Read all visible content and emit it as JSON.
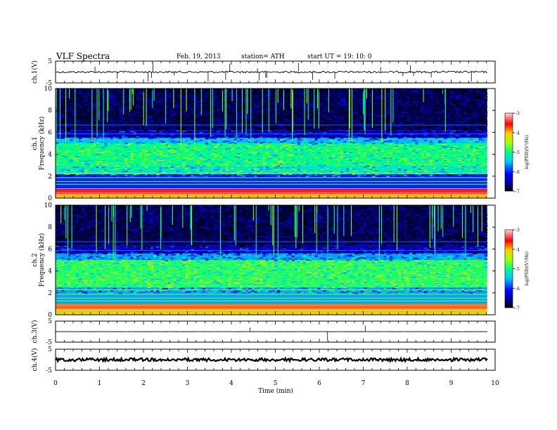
{
  "header": {
    "title": "VLF  Spectra",
    "date": "Feb. 19, 2013",
    "station": "station= ATH",
    "start": "start  UT  =    19: 10: 0"
  },
  "chart_data": {
    "type": "heatmap",
    "title": "VLF  Spectra",
    "xlabel": "Time  (min)",
    "xlim": [
      0,
      10
    ],
    "x_ticks": [
      "0",
      "1",
      "2",
      "3",
      "4",
      "5",
      "6",
      "7",
      "8",
      "9",
      "10"
    ],
    "panels": [
      {
        "kind": "waveform",
        "ylabel": "ch.1(V)",
        "ylim": [
          -5,
          5
        ],
        "y_ticks": [
          "5",
          "-5"
        ],
        "baseline": 0
      },
      {
        "kind": "spectrogram",
        "ylabel": "ch.1\nFrequency  (kHz)",
        "ylabel_lines": [
          "ch.1",
          "Frequency  (kHz)"
        ],
        "ylim": [
          0,
          10
        ],
        "y_ticks": [
          "0",
          "2",
          "4",
          "6",
          "8",
          "10"
        ],
        "bands": [
          {
            "from": 0.0,
            "to": 0.4,
            "level": -4.0
          },
          {
            "from": 0.4,
            "to": 0.8,
            "level": -3.5
          },
          {
            "from": 0.8,
            "to": 2.2,
            "level": -6.0
          },
          {
            "from": 2.2,
            "to": 3.0,
            "level": -5.2
          },
          {
            "from": 3.0,
            "to": 5.0,
            "level": -5.0
          },
          {
            "from": 5.0,
            "to": 5.5,
            "level": -5.5
          },
          {
            "from": 5.5,
            "to": 6.2,
            "level": -6.4
          },
          {
            "from": 6.2,
            "to": 10.0,
            "level": -6.8
          }
        ],
        "colorbar": {
          "label": "log(PSD)(V²/Hz)",
          "range": [
            -7,
            -3
          ],
          "ticks": [
            "-3",
            "-4",
            "-5",
            "-6",
            "-7"
          ]
        }
      },
      {
        "kind": "spectrogram",
        "ylabel": "ch.2\nFrequency  (kHz)",
        "ylabel_lines": [
          "ch.2",
          "Frequency  (kHz)"
        ],
        "ylim": [
          0,
          10
        ],
        "y_ticks": [
          "0",
          "2",
          "4",
          "6",
          "8",
          "10"
        ],
        "bands": [
          {
            "from": 0.0,
            "to": 0.5,
            "level": -4.2
          },
          {
            "from": 0.5,
            "to": 1.0,
            "level": -3.8
          },
          {
            "from": 1.0,
            "to": 2.5,
            "level": -5.6
          },
          {
            "from": 2.5,
            "to": 5.0,
            "level": -4.9
          },
          {
            "from": 5.0,
            "to": 5.6,
            "level": -5.6
          },
          {
            "from": 5.6,
            "to": 6.3,
            "level": -6.4
          },
          {
            "from": 6.3,
            "to": 10.0,
            "level": -6.8
          }
        ],
        "colorbar": {
          "label": "log(PSD)(V²/Hz)",
          "range": [
            -7,
            -3
          ],
          "ticks": [
            "-3",
            "-4",
            "-5",
            "-6",
            "-7"
          ]
        }
      },
      {
        "kind": "waveform",
        "ylabel": "ch.3(V)",
        "ylim": [
          -5,
          5
        ],
        "y_ticks": [
          "5",
          "-5"
        ],
        "baseline": 0
      },
      {
        "kind": "waveform",
        "ylabel": "ch.4(V)",
        "ylim": [
          -5,
          5
        ],
        "y_ticks": [
          "5",
          "-5"
        ],
        "baseline": 0
      }
    ]
  }
}
